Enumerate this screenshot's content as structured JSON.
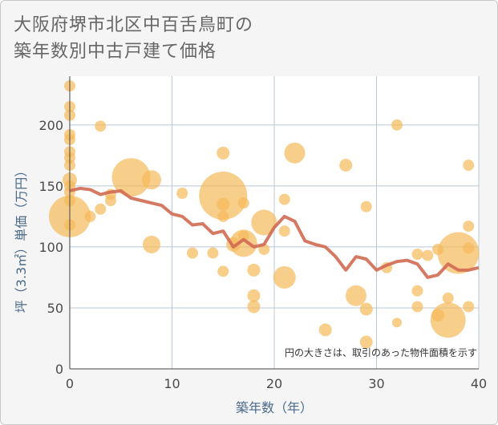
{
  "title_lines": [
    "大阪府堺市北区中百舌鳥町の",
    "築年数別中古戸建て価格"
  ],
  "chart_data": {
    "type": "scatter",
    "xlabel": "築年数（年）",
    "ylabel": "坪（3.3㎡）単価（万円）",
    "xlim": [
      0,
      40
    ],
    "ylim": [
      0,
      240
    ],
    "xticks": [
      0,
      10,
      20,
      30,
      40
    ],
    "yticks": [
      0,
      50,
      100,
      150,
      200
    ],
    "grid": true,
    "annotation": "円の大きさは、取引のあった物件面積を示す",
    "colors": {
      "bubble": "#f5b95a",
      "line": "#d06a52",
      "grid": "#b8c8d8",
      "background": "#ffffff"
    },
    "points": [
      {
        "x": 0,
        "y": 232,
        "r": 7
      },
      {
        "x": 0,
        "y": 215,
        "r": 7
      },
      {
        "x": 0,
        "y": 208,
        "r": 7
      },
      {
        "x": 0,
        "y": 192,
        "r": 7
      },
      {
        "x": 0,
        "y": 188,
        "r": 7
      },
      {
        "x": 0,
        "y": 178,
        "r": 7
      },
      {
        "x": 0,
        "y": 173,
        "r": 7
      },
      {
        "x": 0,
        "y": 167,
        "r": 7
      },
      {
        "x": 0,
        "y": 155,
        "r": 9
      },
      {
        "x": 0,
        "y": 150,
        "r": 7
      },
      {
        "x": 0,
        "y": 145,
        "r": 7
      },
      {
        "x": 0,
        "y": 138,
        "r": 7
      },
      {
        "x": 0,
        "y": 125,
        "r": 26
      },
      {
        "x": 0,
        "y": 118,
        "r": 7
      },
      {
        "x": 2,
        "y": 125,
        "r": 7
      },
      {
        "x": 3,
        "y": 199,
        "r": 7
      },
      {
        "x": 3,
        "y": 131,
        "r": 7
      },
      {
        "x": 4,
        "y": 143,
        "r": 7
      },
      {
        "x": 4,
        "y": 138,
        "r": 7
      },
      {
        "x": 6,
        "y": 157,
        "r": 24
      },
      {
        "x": 8,
        "y": 155,
        "r": 12
      },
      {
        "x": 8,
        "y": 102,
        "r": 11
      },
      {
        "x": 11,
        "y": 144,
        "r": 7
      },
      {
        "x": 12,
        "y": 95,
        "r": 7
      },
      {
        "x": 14,
        "y": 95,
        "r": 7
      },
      {
        "x": 15,
        "y": 177,
        "r": 8
      },
      {
        "x": 15,
        "y": 142,
        "r": 30
      },
      {
        "x": 15,
        "y": 135,
        "r": 8
      },
      {
        "x": 15,
        "y": 125,
        "r": 7
      },
      {
        "x": 15,
        "y": 80,
        "r": 7
      },
      {
        "x": 16,
        "y": 102,
        "r": 9
      },
      {
        "x": 17,
        "y": 136,
        "r": 7
      },
      {
        "x": 17,
        "y": 109,
        "r": 7
      },
      {
        "x": 17,
        "y": 103,
        "r": 17
      },
      {
        "x": 18,
        "y": 81,
        "r": 8
      },
      {
        "x": 18,
        "y": 60,
        "r": 8
      },
      {
        "x": 18,
        "y": 51,
        "r": 8
      },
      {
        "x": 19,
        "y": 120,
        "r": 16
      },
      {
        "x": 19,
        "y": 98,
        "r": 7
      },
      {
        "x": 21,
        "y": 139,
        "r": 7
      },
      {
        "x": 21,
        "y": 113,
        "r": 7
      },
      {
        "x": 21,
        "y": 75,
        "r": 14
      },
      {
        "x": 22,
        "y": 177,
        "r": 13
      },
      {
        "x": 25,
        "y": 32,
        "r": 8
      },
      {
        "x": 27,
        "y": 167,
        "r": 8
      },
      {
        "x": 28,
        "y": 60,
        "r": 13
      },
      {
        "x": 29,
        "y": 133,
        "r": 7
      },
      {
        "x": 29,
        "y": 49,
        "r": 8
      },
      {
        "x": 29,
        "y": 22,
        "r": 8
      },
      {
        "x": 31,
        "y": 83,
        "r": 7
      },
      {
        "x": 32,
        "y": 200,
        "r": 7
      },
      {
        "x": 32,
        "y": 38,
        "r": 6
      },
      {
        "x": 34,
        "y": 94,
        "r": 7
      },
      {
        "x": 34,
        "y": 64,
        "r": 7
      },
      {
        "x": 34,
        "y": 51,
        "r": 7
      },
      {
        "x": 35,
        "y": 93,
        "r": 7
      },
      {
        "x": 36,
        "y": 98,
        "r": 7
      },
      {
        "x": 36,
        "y": 44,
        "r": 8
      },
      {
        "x": 37,
        "y": 58,
        "r": 7
      },
      {
        "x": 37,
        "y": 40,
        "r": 22
      },
      {
        "x": 38,
        "y": 95,
        "r": 26
      },
      {
        "x": 39,
        "y": 167,
        "r": 7
      },
      {
        "x": 39,
        "y": 117,
        "r": 7
      },
      {
        "x": 39,
        "y": 99,
        "r": 7
      },
      {
        "x": 39,
        "y": 51,
        "r": 7
      }
    ],
    "trend": [
      {
        "x": 0,
        "y": 146
      },
      {
        "x": 1,
        "y": 148
      },
      {
        "x": 2,
        "y": 147
      },
      {
        "x": 3,
        "y": 143
      },
      {
        "x": 4,
        "y": 145
      },
      {
        "x": 5,
        "y": 146
      },
      {
        "x": 6,
        "y": 140
      },
      {
        "x": 7,
        "y": 138
      },
      {
        "x": 8,
        "y": 136
      },
      {
        "x": 9,
        "y": 134
      },
      {
        "x": 10,
        "y": 127
      },
      {
        "x": 11,
        "y": 125
      },
      {
        "x": 12,
        "y": 118
      },
      {
        "x": 13,
        "y": 119
      },
      {
        "x": 14,
        "y": 111
      },
      {
        "x": 15,
        "y": 113
      },
      {
        "x": 16,
        "y": 100
      },
      {
        "x": 17,
        "y": 106
      },
      {
        "x": 18,
        "y": 100
      },
      {
        "x": 19,
        "y": 102
      },
      {
        "x": 20,
        "y": 116
      },
      {
        "x": 21,
        "y": 125
      },
      {
        "x": 22,
        "y": 121
      },
      {
        "x": 23,
        "y": 105
      },
      {
        "x": 24,
        "y": 102
      },
      {
        "x": 25,
        "y": 100
      },
      {
        "x": 26,
        "y": 92
      },
      {
        "x": 27,
        "y": 81
      },
      {
        "x": 28,
        "y": 92
      },
      {
        "x": 29,
        "y": 90
      },
      {
        "x": 30,
        "y": 81
      },
      {
        "x": 31,
        "y": 85
      },
      {
        "x": 32,
        "y": 88
      },
      {
        "x": 33,
        "y": 89
      },
      {
        "x": 34,
        "y": 86
      },
      {
        "x": 35,
        "y": 75
      },
      {
        "x": 36,
        "y": 77
      },
      {
        "x": 37,
        "y": 86
      },
      {
        "x": 38,
        "y": 81
      },
      {
        "x": 39,
        "y": 81
      },
      {
        "x": 40,
        "y": 83
      }
    ]
  }
}
